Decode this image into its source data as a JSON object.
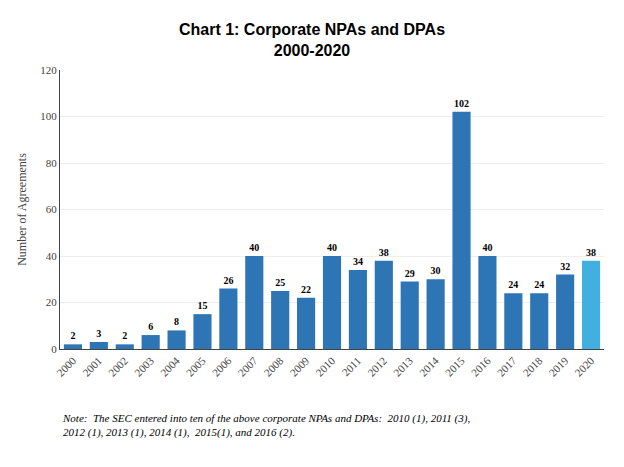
{
  "chart_data": {
    "type": "bar",
    "title": "Chart 1: Corporate NPAs and DPAs",
    "subtitle": "2000-2020",
    "ylabel": "Number of Agreements",
    "categories": [
      "2000",
      "2001",
      "2002",
      "2003",
      "2004",
      "2005",
      "2006",
      "2007",
      "2008",
      "2009",
      "2010",
      "2011",
      "2012",
      "2013",
      "2014",
      "2015",
      "2016",
      "2017",
      "2018",
      "2019",
      "2020"
    ],
    "values": [
      2,
      3,
      2,
      6,
      8,
      15,
      26,
      40,
      25,
      22,
      40,
      34,
      38,
      29,
      30,
      102,
      40,
      24,
      24,
      32,
      38
    ],
    "colors": [
      "#2E75B6",
      "#2E75B6",
      "#2E75B6",
      "#2E75B6",
      "#2E75B6",
      "#2E75B6",
      "#2E75B6",
      "#2E75B6",
      "#2E75B6",
      "#2E75B6",
      "#2E75B6",
      "#2E75B6",
      "#2E75B6",
      "#2E75B6",
      "#2E75B6",
      "#2E75B6",
      "#2E75B6",
      "#2E75B6",
      "#2E75B6",
      "#2E75B6",
      "#41B0E0"
    ],
    "ylim": [
      0,
      120
    ],
    "yticks": [
      0,
      20,
      40,
      60,
      80,
      100,
      120
    ],
    "grid": true,
    "data_labels": true,
    "annotations": [
      "Note:  The SEC entered into ten of the above corporate NPAs and DPAs:  2010 (1), 2011 (3),",
      "2012 (1), 2013 (1), 2014 (1),  2015(1), and 2016 (2)."
    ]
  }
}
